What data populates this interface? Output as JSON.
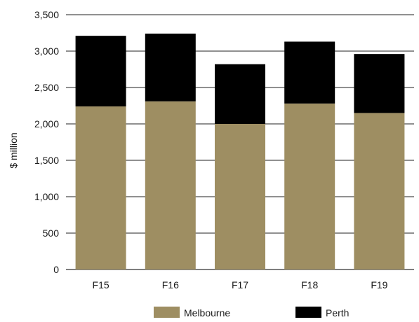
{
  "chart_data": {
    "type": "bar",
    "stacked": true,
    "title": "",
    "xlabel": "",
    "ylabel": "$ million",
    "ylim": [
      0,
      3500
    ],
    "yticks": [
      0,
      500,
      1000,
      1500,
      2000,
      2500,
      3000,
      3500
    ],
    "ytick_labels": [
      "0",
      "500",
      "1,000",
      "1,500",
      "2,000",
      "2,500",
      "3,000",
      "3,500"
    ],
    "categories": [
      "F15",
      "F16",
      "F17",
      "F18",
      "F19"
    ],
    "grid": "horizontal",
    "legend_position": "bottom",
    "series": [
      {
        "name": "Melbourne",
        "color": "#9e8e62",
        "values": [
          2240,
          2310,
          2000,
          2280,
          2150
        ]
      },
      {
        "name": "Perth",
        "color": "#000000",
        "values": [
          970,
          930,
          820,
          850,
          810
        ]
      }
    ]
  }
}
